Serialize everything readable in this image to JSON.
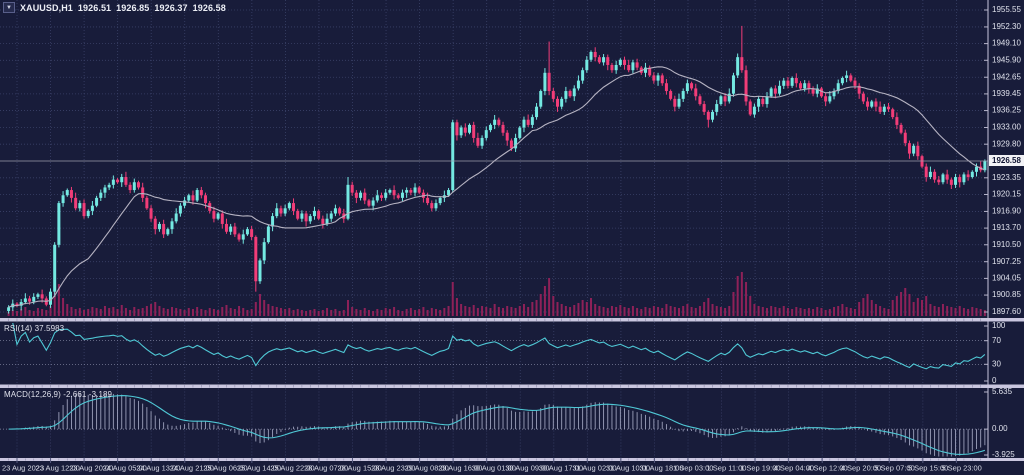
{
  "window": {
    "symbol_period": "XAUUSD,H1",
    "ohlc": {
      "open": "1926.51",
      "high": "1926.85",
      "low": "1926.37",
      "close": "1926.58"
    },
    "menu_icon": "▼"
  },
  "colors": {
    "background": "#181c3a",
    "grid": "#3a4168",
    "bull": "#74e9e2",
    "bear": "#f23d78",
    "volume": "#8e2158",
    "ma": "#b6b3c2",
    "indicator_line": "#4fc8d5",
    "histogram": "#b4b8d2",
    "separator": "#c9c6df",
    "axis_text": "#dfe1ec",
    "price_line": "#9b9bab",
    "tag_bg": "#f2f2f6",
    "tag_text": "#0e1230",
    "level_dotted": "#8f92ae"
  },
  "price_axis": {
    "ticks": [
      "1955.55",
      "1952.30",
      "1949.10",
      "1945.90",
      "1942.65",
      "1939.45",
      "1936.25",
      "1933.00",
      "1929.80",
      "1923.35",
      "1920.15",
      "1916.90",
      "1913.70",
      "1910.50",
      "1907.25",
      "1904.05",
      "1900.85",
      "1897.60"
    ],
    "current_price": "1926.58"
  },
  "indicators": {
    "rsi": {
      "label": "RSI(14)",
      "value": "37.5983",
      "scale": [
        "100",
        "70",
        "30",
        "0"
      ],
      "levels": [
        70,
        30
      ],
      "period": 14
    },
    "macd": {
      "label": "MACD(12,26,9)",
      "values": "-2.661 -3.189",
      "scale": [
        "5.635",
        "0.00",
        "-3.925"
      ],
      "params": [
        12,
        26,
        9
      ]
    }
  },
  "chart_data": {
    "type": "candlestick",
    "title": "XAUUSD,H1",
    "symbol": "XAUUSD",
    "timeframe": "H1",
    "ylim": [
      1897.6,
      1955.55
    ],
    "xlabel": "",
    "ylabel": "",
    "x_labels": [
      "23 Aug 2023",
      "23 Aug 12:00",
      "23 Aug 20:00",
      "24 Aug 05:00",
      "24 Aug 13:00",
      "24 Aug 21:00",
      "25 Aug 06:00",
      "25 Aug 14:00",
      "25 Aug 22:00",
      "28 Aug 07:00",
      "28 Aug 15:00",
      "28 Aug 23:00",
      "29 Aug 08:00",
      "29 Aug 16:00",
      "30 Aug 01:00",
      "30 Aug 09:00",
      "30 Aug 17:00",
      "31 Aug 02:00",
      "31 Aug 10:00",
      "31 Aug 18:00",
      "1 Sep 03:00",
      "1 Sep 11:00",
      "1 Sep 19:00",
      "4 Sep 04:00",
      "4 Sep 12:00",
      "4 Sep 20:00",
      "5 Sep 07:00",
      "5 Sep 15:00",
      "5 Sep 23:00"
    ],
    "bars_per_label": 8,
    "open_first": 1897.8,
    "ma_period": 20,
    "closes": [
      1898.5,
      1899.2,
      1898.8,
      1899.5,
      1900.2,
      1899.6,
      1900.5,
      1901.0,
      1900.2,
      1899.0,
      1901.5,
      1910.5,
      1918.5,
      1920.0,
      1921.0,
      1919.5,
      1917.5,
      1918.5,
      1916.0,
      1917.0,
      1918.0,
      1919.5,
      1920.5,
      1921.5,
      1922.0,
      1923.0,
      1922.5,
      1923.5,
      1922.0,
      1921.0,
      1922.5,
      1921.5,
      1919.5,
      1917.5,
      1915.5,
      1913.5,
      1914.5,
      1912.5,
      1913.5,
      1915.0,
      1916.5,
      1918.0,
      1919.0,
      1920.0,
      1919.0,
      1921.0,
      1920.0,
      1918.5,
      1917.0,
      1915.5,
      1916.5,
      1914.5,
      1913.0,
      1914.0,
      1912.5,
      1911.5,
      1912.5,
      1913.5,
      1912.0,
      1903.5,
      1907.5,
      1911.0,
      1914.0,
      1916.0,
      1917.5,
      1916.5,
      1917.5,
      1918.5,
      1917.0,
      1915.5,
      1916.5,
      1915.0,
      1916.0,
      1917.0,
      1915.5,
      1914.5,
      1915.5,
      1916.5,
      1917.5,
      1916.5,
      1915.5,
      1922.0,
      1920.5,
      1919.5,
      1920.5,
      1919.0,
      1918.0,
      1919.0,
      1920.0,
      1919.5,
      1920.5,
      1921.0,
      1920.0,
      1919.5,
      1920.5,
      1921.0,
      1920.5,
      1921.5,
      1920.5,
      1919.5,
      1918.5,
      1917.5,
      1918.5,
      1919.5,
      1920.0,
      1921.0,
      1934.0,
      1931.5,
      1933.0,
      1932.0,
      1933.5,
      1931.0,
      1929.5,
      1931.0,
      1932.5,
      1933.5,
      1934.5,
      1933.5,
      1932.0,
      1930.5,
      1929.0,
      1931.0,
      1933.0,
      1934.5,
      1933.5,
      1935.0,
      1937.0,
      1940.0,
      1943.5,
      1940.0,
      1938.5,
      1937.0,
      1938.5,
      1940.0,
      1939.0,
      1940.5,
      1942.0,
      1944.0,
      1946.0,
      1947.5,
      1946.5,
      1945.5,
      1946.5,
      1945.0,
      1944.0,
      1945.0,
      1946.0,
      1945.0,
      1944.0,
      1945.5,
      1944.5,
      1943.5,
      1944.5,
      1943.0,
      1942.0,
      1943.0,
      1941.5,
      1940.0,
      1938.5,
      1937.0,
      1938.5,
      1940.0,
      1941.5,
      1940.5,
      1939.0,
      1937.5,
      1936.0,
      1934.5,
      1936.0,
      1937.5,
      1939.0,
      1938.0,
      1939.5,
      1943.0,
      1946.5,
      1944.0,
      1938.0,
      1935.5,
      1937.0,
      1938.5,
      1937.5,
      1939.0,
      1940.5,
      1939.5,
      1941.0,
      1942.0,
      1941.0,
      1942.5,
      1941.5,
      1940.5,
      1941.5,
      1940.5,
      1939.5,
      1940.5,
      1939.0,
      1938.0,
      1939.0,
      1940.0,
      1941.5,
      1942.5,
      1943.0,
      1942.0,
      1941.0,
      1939.5,
      1938.0,
      1937.0,
      1938.0,
      1937.0,
      1936.0,
      1937.0,
      1936.5,
      1935.0,
      1933.5,
      1932.0,
      1930.0,
      1928.0,
      1929.5,
      1927.5,
      1925.5,
      1923.5,
      1924.5,
      1923.0,
      1922.5,
      1924.0,
      1923.0,
      1922.0,
      1923.5,
      1922.5,
      1924.0,
      1923.5,
      1924.5,
      1925.5,
      1924.8,
      1926.58
    ],
    "volumes": [
      4,
      6,
      5,
      7,
      9,
      6,
      5,
      8,
      7,
      6,
      10,
      26,
      32,
      18,
      12,
      9,
      7,
      8,
      6,
      7,
      9,
      8,
      7,
      10,
      8,
      9,
      7,
      11,
      8,
      6,
      9,
      7,
      8,
      10,
      12,
      14,
      10,
      8,
      7,
      9,
      8,
      7,
      6,
      8,
      7,
      9,
      7,
      6,
      8,
      7,
      6,
      9,
      11,
      8,
      7,
      10,
      8,
      6,
      7,
      14,
      22,
      16,
      12,
      10,
      9,
      8,
      7,
      8,
      6,
      7,
      6,
      5,
      6,
      7,
      5,
      6,
      8,
      6,
      7,
      5,
      6,
      16,
      9,
      7,
      6,
      8,
      6,
      5,
      7,
      6,
      8,
      7,
      9,
      6,
      5,
      7,
      8,
      6,
      7,
      9,
      6,
      8,
      7,
      6,
      8,
      10,
      34,
      18,
      12,
      10,
      9,
      11,
      8,
      10,
      9,
      8,
      12,
      9,
      8,
      10,
      9,
      8,
      10,
      12,
      9,
      14,
      16,
      22,
      30,
      38,
      20,
      14,
      12,
      10,
      9,
      11,
      13,
      16,
      14,
      18,
      12,
      10,
      9,
      8,
      10,
      9,
      11,
      9,
      8,
      10,
      8,
      7,
      9,
      8,
      10,
      9,
      8,
      12,
      10,
      9,
      8,
      10,
      12,
      9,
      8,
      10,
      14,
      18,
      12,
      10,
      9,
      8,
      10,
      24,
      40,
      44,
      34,
      20,
      12,
      10,
      9,
      8,
      10,
      9,
      8,
      10,
      8,
      7,
      9,
      8,
      7,
      8,
      7,
      9,
      8,
      6,
      7,
      9,
      10,
      12,
      9,
      8,
      7,
      14,
      18,
      22,
      16,
      12,
      10,
      8,
      7,
      16,
      20,
      24,
      28,
      22,
      14,
      18,
      16,
      20,
      12,
      10,
      9,
      12,
      10,
      9,
      8,
      10,
      8,
      7,
      9,
      8,
      7,
      6
    ],
    "wick_pattern": [
      0.4,
      0.8,
      0.3,
      0.6,
      1.0,
      0.5,
      0.7,
      0.3,
      0.9,
      0.4,
      0.6,
      0.5
    ],
    "wick_overrides": {
      "59": [
        0.3,
        2.0
      ],
      "81": [
        1.5,
        0.3
      ],
      "106": [
        0.5,
        0.5
      ],
      "129": [
        6.0,
        0.8
      ],
      "167": [
        0.3,
        1.5
      ],
      "175": [
        6.0,
        0.5
      ],
      "225": [
        0.4,
        0.8
      ],
      "233": [
        0.3,
        0.4
      ]
    }
  }
}
